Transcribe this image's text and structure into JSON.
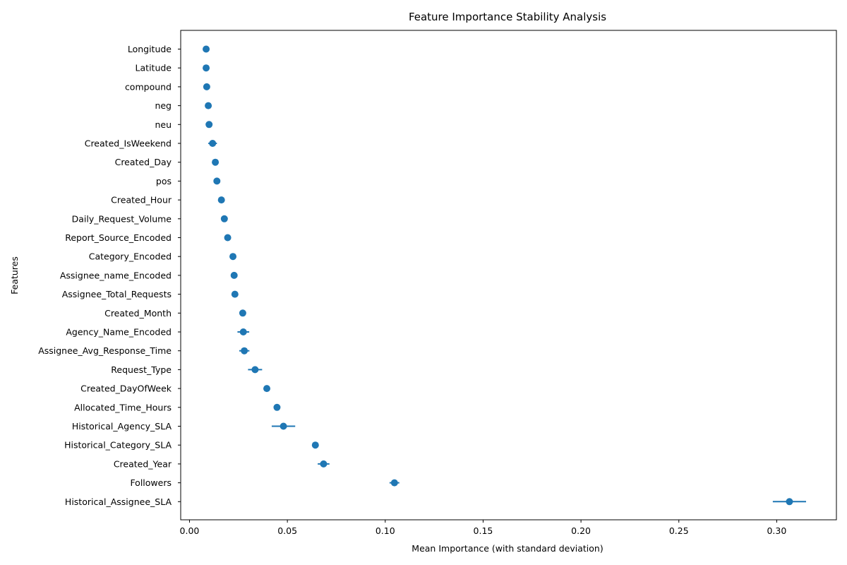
{
  "chart_data": {
    "type": "scatter",
    "title": "Feature Importance Stability Analysis",
    "xlabel": "Mean Importance (with standard deviation)",
    "ylabel": "Features",
    "xlim": [
      -0.0045,
      0.3305
    ],
    "xticks": [
      0.0,
      0.05,
      0.1,
      0.15,
      0.2,
      0.25,
      0.3
    ],
    "xtick_labels": [
      "0.00",
      "0.05",
      "0.10",
      "0.15",
      "0.20",
      "0.25",
      "0.30"
    ],
    "grid": false,
    "color": "#1f77b4",
    "features": [
      {
        "name": "Longitude",
        "mean": 0.0085,
        "std": 0.0003
      },
      {
        "name": "Latitude",
        "mean": 0.0085,
        "std": 0.0003
      },
      {
        "name": "compound",
        "mean": 0.0088,
        "std": 0.0004
      },
      {
        "name": "neg",
        "mean": 0.0096,
        "std": 0.0004
      },
      {
        "name": "neu",
        "mean": 0.01,
        "std": 0.0004
      },
      {
        "name": "Created_IsWeekend",
        "mean": 0.0118,
        "std": 0.0022
      },
      {
        "name": "Created_Day",
        "mean": 0.0132,
        "std": 0.0004
      },
      {
        "name": "pos",
        "mean": 0.014,
        "std": 0.0008
      },
      {
        "name": "Created_Hour",
        "mean": 0.0163,
        "std": 0.0004
      },
      {
        "name": "Daily_Request_Volume",
        "mean": 0.0178,
        "std": 0.0004
      },
      {
        "name": "Report_Source_Encoded",
        "mean": 0.0195,
        "std": 0.0004
      },
      {
        "name": "Category_Encoded",
        "mean": 0.0222,
        "std": 0.0004
      },
      {
        "name": "Assignee_name_Encoded",
        "mean": 0.0228,
        "std": 0.0012
      },
      {
        "name": "Assignee_Total_Requests",
        "mean": 0.0232,
        "std": 0.0004
      },
      {
        "name": "Created_Month",
        "mean": 0.0272,
        "std": 0.0004
      },
      {
        "name": "Agency_Name_Encoded",
        "mean": 0.0275,
        "std": 0.003
      },
      {
        "name": "Assignee_Avg_Response_Time",
        "mean": 0.028,
        "std": 0.0026
      },
      {
        "name": "Request_Type",
        "mean": 0.0335,
        "std": 0.0036
      },
      {
        "name": "Created_DayOfWeek",
        "mean": 0.0395,
        "std": 0.0004
      },
      {
        "name": "Allocated_Time_Hours",
        "mean": 0.0447,
        "std": 0.0004
      },
      {
        "name": "Historical_Agency_SLA",
        "mean": 0.048,
        "std": 0.006
      },
      {
        "name": "Historical_Category_SLA",
        "mean": 0.0643,
        "std": 0.0008
      },
      {
        "name": "Created_Year",
        "mean": 0.0685,
        "std": 0.003
      },
      {
        "name": "Followers",
        "mean": 0.1047,
        "std": 0.0025
      },
      {
        "name": "Historical_Assignee_SLA",
        "mean": 0.3065,
        "std": 0.0085
      }
    ]
  }
}
